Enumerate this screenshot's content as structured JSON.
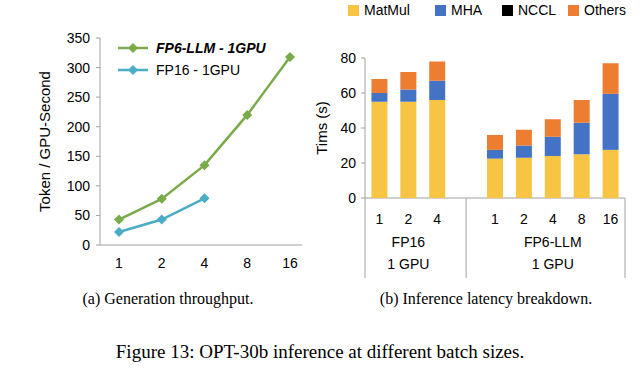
{
  "chart_data": [
    {
      "type": "line",
      "caption": "(a) Generation throughput.",
      "y_label": "Token / GPU-Second",
      "categories": [
        "1",
        "2",
        "4",
        "8",
        "16"
      ],
      "series": [
        {
          "name": "FP6-LLM  - 1GPU",
          "color": "#7aab4a",
          "marker": "diamond",
          "values": [
            43,
            78,
            135,
            220,
            318
          ]
        },
        {
          "name": "FP16 - 1GPU",
          "color": "#4bacc6",
          "marker": "diamond",
          "values": [
            22,
            43,
            79,
            null,
            null
          ]
        }
      ],
      "ylim": [
        0,
        350
      ],
      "yticks": [
        0,
        50,
        100,
        150,
        200,
        250,
        300,
        350
      ],
      "grid": false,
      "legend": "top-left"
    },
    {
      "type": "bar",
      "caption": "(b) Inference latency breakdown.",
      "y_label": "Tims (s)",
      "stacked": true,
      "categories": [
        "1",
        "2",
        "4",
        "1",
        "2",
        "4",
        "8",
        "16"
      ],
      "groups": [
        {
          "label": "FP16",
          "sublabel": "1 GPU",
          "size": 3
        },
        {
          "label": "FP6-LLM",
          "sublabel": "1 GPU",
          "size": 5
        }
      ],
      "series": [
        {
          "name": "MatMul",
          "color": "#f7c444",
          "values": [
            55,
            55,
            56,
            22.5,
            23,
            24,
            25,
            27.5
          ]
        },
        {
          "name": "MHA",
          "color": "#4472c4",
          "values": [
            5,
            7,
            11,
            5,
            7,
            11,
            18,
            32
          ]
        },
        {
          "name": "NCCL",
          "color": "#000000",
          "values": [
            0,
            0,
            0,
            0,
            0,
            0,
            0,
            0
          ]
        },
        {
          "name": "Others",
          "color": "#ed7d31",
          "values": [
            8,
            10,
            11,
            8.5,
            9,
            10,
            13,
            17.5
          ]
        }
      ],
      "ylim": [
        0,
        80
      ],
      "yticks": [
        0,
        20,
        40,
        60,
        80
      ],
      "grid": false,
      "legend": "top"
    }
  ],
  "caption": "Figure 13: OPT-30b inference at different batch sizes."
}
